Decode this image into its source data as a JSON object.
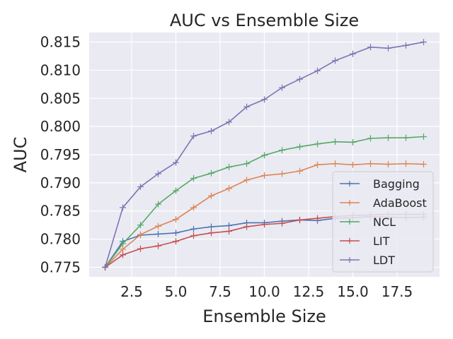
{
  "chart_data": {
    "type": "line",
    "title": "AUC vs Ensemble Size",
    "xlabel": "Ensemble Size",
    "ylabel": "AUC",
    "xlim": [
      0.1,
      19.9
    ],
    "ylim": [
      0.7733,
      0.8167
    ],
    "xticks": [
      2.5,
      5.0,
      7.5,
      10.0,
      12.5,
      15.0,
      17.5
    ],
    "xtick_labels": [
      "2.5",
      "5.0",
      "7.5",
      "10.0",
      "12.5",
      "15.0",
      "17.5"
    ],
    "yticks": [
      0.775,
      0.78,
      0.785,
      0.79,
      0.795,
      0.8,
      0.805,
      0.81,
      0.815
    ],
    "ytick_labels": [
      "0.775",
      "0.780",
      "0.785",
      "0.790",
      "0.795",
      "0.800",
      "0.805",
      "0.810",
      "0.815"
    ],
    "grid": true,
    "legend_position": "lower-right",
    "x": [
      1,
      2,
      3,
      4,
      5,
      6,
      7,
      8,
      9,
      10,
      11,
      12,
      13,
      14,
      15,
      16,
      17,
      18,
      19
    ],
    "series": [
      {
        "name": "Bagging",
        "color": "#4c72b0",
        "marker": "plus",
        "values": [
          0.775,
          0.7796,
          0.7807,
          0.7809,
          0.7811,
          0.7818,
          0.7822,
          0.7824,
          0.7829,
          0.7829,
          0.7832,
          0.7834,
          0.7833,
          0.7837,
          0.7838,
          0.784,
          0.7839,
          0.7838,
          0.7839
        ]
      },
      {
        "name": "AdaBoost",
        "color": "#dd8452",
        "marker": "plus",
        "values": [
          0.775,
          0.7782,
          0.7808,
          0.7823,
          0.7835,
          0.7856,
          0.7877,
          0.789,
          0.7905,
          0.7913,
          0.7916,
          0.7921,
          0.7932,
          0.7934,
          0.7932,
          0.7934,
          0.7933,
          0.7934,
          0.7933
        ]
      },
      {
        "name": "NCL",
        "color": "#55a868",
        "marker": "plus",
        "values": [
          0.775,
          0.7792,
          0.7825,
          0.7862,
          0.7886,
          0.7908,
          0.7917,
          0.7928,
          0.7934,
          0.7949,
          0.7958,
          0.7964,
          0.7969,
          0.7973,
          0.7972,
          0.7979,
          0.798,
          0.798,
          0.7982
        ]
      },
      {
        "name": "LIT",
        "color": "#c44e52",
        "marker": "plus",
        "values": [
          0.775,
          0.7772,
          0.7783,
          0.7788,
          0.7796,
          0.7806,
          0.7811,
          0.7814,
          0.7822,
          0.7826,
          0.7828,
          0.7834,
          0.7837,
          0.784,
          0.7842,
          0.7843,
          0.7844,
          0.7844,
          0.7844
        ]
      },
      {
        "name": "LDT",
        "color": "#8172b3",
        "marker": "plus",
        "values": [
          0.775,
          0.7856,
          0.7893,
          0.7916,
          0.7936,
          0.7983,
          0.7992,
          0.8008,
          0.8035,
          0.8048,
          0.8069,
          0.8084,
          0.8099,
          0.8117,
          0.8129,
          0.8141,
          0.8139,
          0.8144,
          0.815
        ]
      }
    ]
  }
}
